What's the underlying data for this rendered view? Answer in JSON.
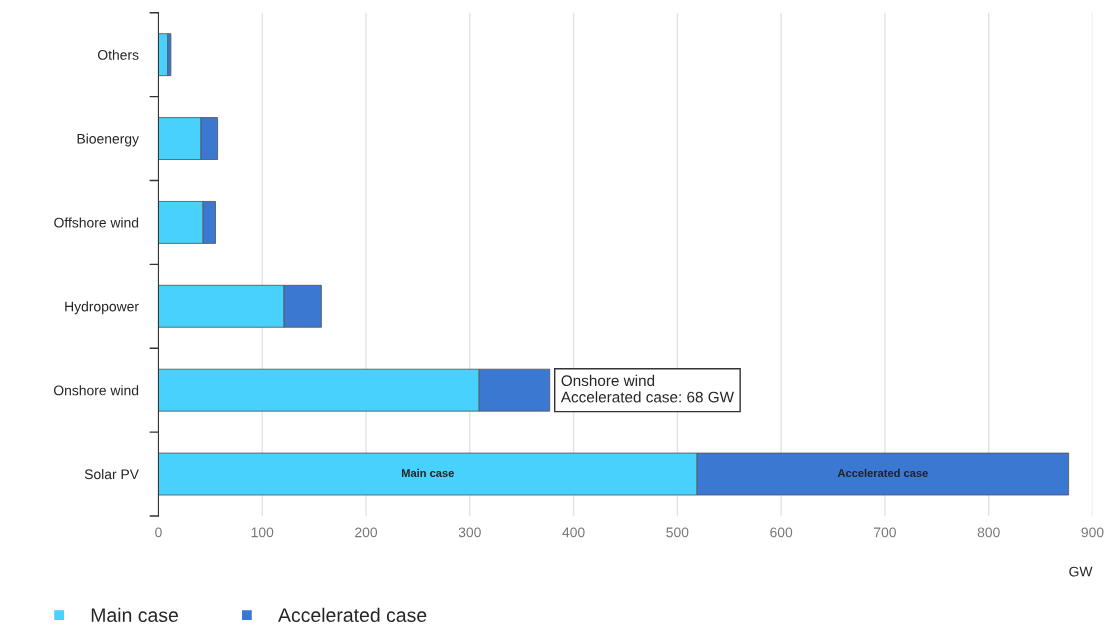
{
  "chart_data": {
    "type": "bar",
    "orientation": "horizontal",
    "stacked": true,
    "categories": [
      "Others",
      "Bioenergy",
      "Offshore wind",
      "Hydropower",
      "Onshore wind",
      "Solar PV"
    ],
    "series": [
      {
        "name": "Main case",
        "color": "#48d1fc",
        "values": [
          9,
          41,
          43,
          121,
          309,
          519
        ]
      },
      {
        "name": "Accelerated case",
        "color": "#3b78d2",
        "values": [
          3,
          16,
          12,
          36,
          68,
          358
        ]
      }
    ],
    "xlim": [
      0,
      900
    ],
    "xticks": [
      0,
      100,
      200,
      300,
      400,
      500,
      600,
      700,
      800,
      900
    ],
    "xlabel": "GW",
    "grid": "x",
    "legend": "bottom left",
    "annotations": [
      "Main case",
      "Accelerated case",
      {
        "text": "Onshore wind\nAccelerated case: 68 GW",
        "x": 377,
        "y": "Onshore wind"
      }
    ]
  }
}
